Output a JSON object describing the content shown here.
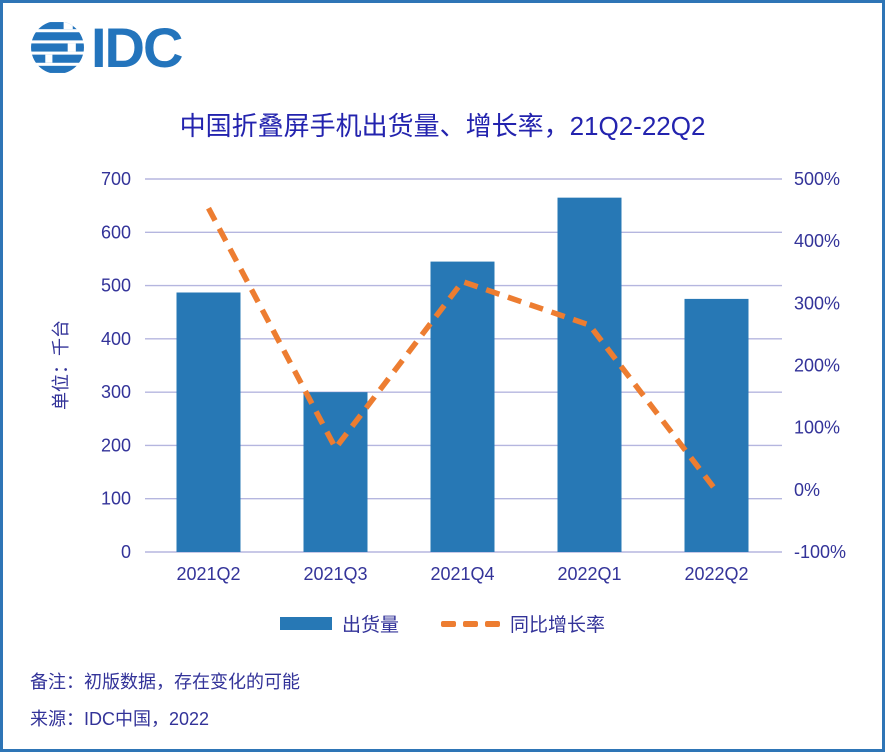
{
  "page": {
    "border_color": "#2E75B6",
    "background": "#FFFFFF"
  },
  "logo": {
    "text": "IDC",
    "color": "#2374BC"
  },
  "title": {
    "text": "中国折叠屏手机出货量、增长率，21Q2-22Q2",
    "color": "#2323AE"
  },
  "chart_data": {
    "type": "bar",
    "subtype": "bar-line-combo",
    "title": "中国折叠屏手机出货量、增长率，21Q2-22Q2",
    "categories": [
      "2021Q2",
      "2021Q3",
      "2021Q4",
      "2022Q1",
      "2022Q2"
    ],
    "series": [
      {
        "name": "出货量",
        "type": "bar",
        "axis": "left",
        "unit": "千台",
        "color": "#2778B5",
        "values": [
          487,
          300,
          545,
          665,
          475
        ]
      },
      {
        "name": "同比增长率",
        "type": "line",
        "line_style": "dashed",
        "axis": "right",
        "unit": "%",
        "color": "#ED7D31",
        "values": [
          453,
          67,
          335,
          265,
          -2
        ]
      }
    ],
    "left_axis": {
      "title": "单位：千台",
      "min": 0,
      "max": 700,
      "step": 100,
      "tick_labels": [
        "0",
        "100",
        "200",
        "300",
        "400",
        "500",
        "600",
        "700"
      ]
    },
    "right_axis": {
      "min": -100,
      "max": 500,
      "step": 100,
      "suffix": "%",
      "tick_labels": [
        "-100%",
        "0%",
        "100%",
        "200%",
        "300%",
        "400%",
        "500%"
      ]
    },
    "grid": true,
    "legend_position": "bottom",
    "colors": {
      "axis_text": "#333399",
      "gridline": "#B5B6DF"
    }
  },
  "legend": {
    "items": [
      {
        "label": "出货量",
        "swatch": "bar",
        "color": "#2778B5"
      },
      {
        "label": "同比增长率",
        "swatch": "dashed-line",
        "color": "#ED7D31"
      }
    ]
  },
  "notes": {
    "color": "#333399",
    "note": "备注：初版数据，存在变化的可能",
    "source": "来源：IDC中国，2022"
  }
}
